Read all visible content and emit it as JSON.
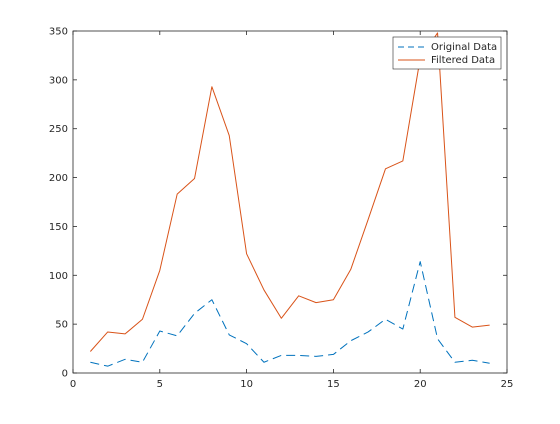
{
  "chart_data": {
    "type": "line",
    "title": "",
    "xlabel": "",
    "ylabel": "",
    "xlim": [
      0,
      25
    ],
    "ylim": [
      0,
      350
    ],
    "xticks": [
      0,
      5,
      10,
      15,
      20,
      25
    ],
    "yticks": [
      0,
      50,
      100,
      150,
      200,
      250,
      300,
      350
    ],
    "grid": false,
    "legend_position": "top-right",
    "series": [
      {
        "name": "Original Data",
        "style": "dashed",
        "color": "#0072BD",
        "x": [
          1,
          2,
          3,
          4,
          5,
          6,
          7,
          8,
          9,
          10,
          11,
          12,
          13,
          14,
          15,
          16,
          17,
          18,
          19,
          20,
          21,
          22,
          23,
          24
        ],
        "values": [
          11,
          7,
          14,
          11,
          43,
          38,
          61,
          75,
          39,
          30,
          11,
          18,
          18,
          17,
          19,
          33,
          42,
          55,
          45,
          114,
          35,
          11,
          13,
          10
        ]
      },
      {
        "name": "Filtered Data",
        "style": "solid",
        "color": "#D95319",
        "x": [
          1,
          2,
          3,
          4,
          5,
          6,
          7,
          8,
          9,
          10,
          11,
          12,
          13,
          14,
          15,
          16,
          17,
          18,
          19,
          20,
          21,
          22,
          23,
          24
        ],
        "values": [
          22,
          42,
          40,
          55,
          105,
          183,
          199,
          293,
          243,
          122,
          85,
          56,
          79,
          72,
          75,
          106,
          157,
          209,
          217,
          322,
          348,
          57,
          47,
          49
        ]
      }
    ]
  }
}
